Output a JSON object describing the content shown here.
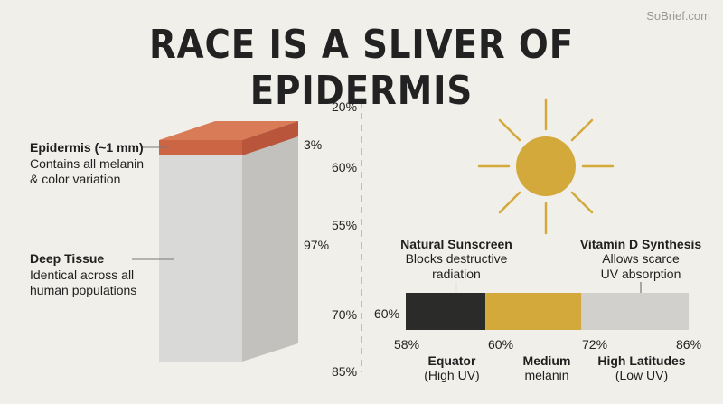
{
  "watermark": "SoBrief.com",
  "title": "RACE IS A SLIVER OF EPIDERMIS",
  "epidermis": {
    "label": "Epidermis (~1 mm)",
    "desc_line1": "Contains all melanin",
    "desc_line2": "& color variation",
    "pct": "3%"
  },
  "deep_tissue": {
    "label": "Deep Tissue",
    "desc_line1": "Identical across all",
    "desc_line2": "human populations",
    "pct": "97%"
  },
  "scale_labels": [
    "20%",
    "60%",
    "55%",
    "70%",
    "85%"
  ],
  "sun_icon": "sun-icon",
  "sunscreen": {
    "label": "Natural Sunscreen",
    "desc_line1": "Blocks destructive",
    "desc_line2": "radiation"
  },
  "vitamin_d": {
    "label": "Vitamin D Synthesis",
    "desc_line1": "Allows scarce",
    "desc_line2": "UV absorption"
  },
  "bar": {
    "left_label": "60%",
    "ticks": [
      "58%",
      "60%",
      "72%",
      "86%"
    ],
    "segments": [
      {
        "color": "#2b2b29",
        "fraction": 0.2814
      },
      {
        "color": "#d3a93b",
        "fraction": 0.3394
      },
      {
        "color": "#d1d0cd",
        "fraction": 0.3792
      }
    ]
  },
  "zones": [
    {
      "line1": "Equator",
      "line2": "(High UV)"
    },
    {
      "line1": "Medium",
      "line2": "melanin"
    },
    {
      "line1": "High Latitudes",
      "line2": "(Low UV)"
    }
  ],
  "colors": {
    "epidermis": "#cc6543",
    "tissue": "#d9d9d7",
    "sun": "#d3a93b",
    "dark": "#2b2b29"
  }
}
